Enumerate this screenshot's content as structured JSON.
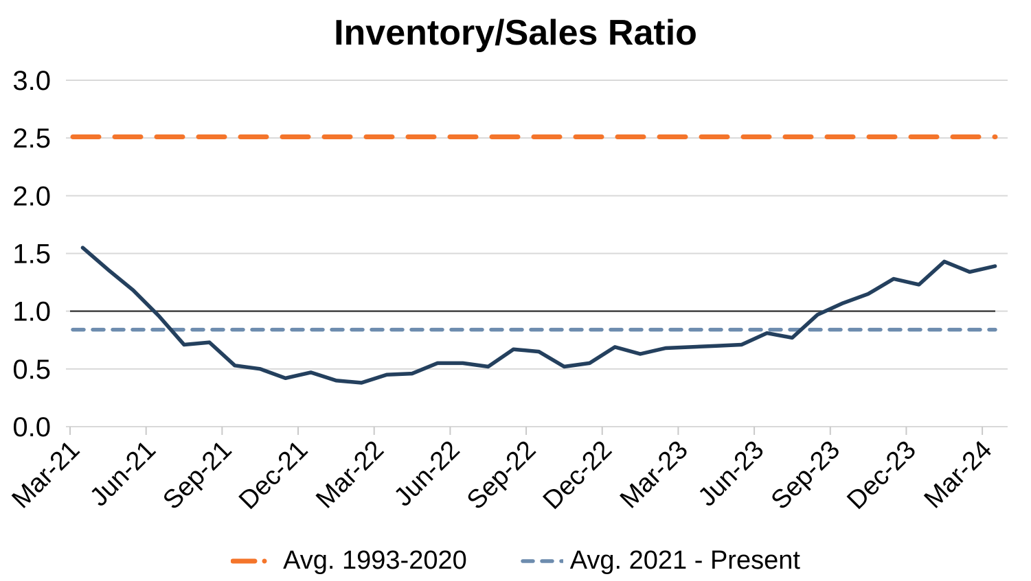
{
  "title": "Inventory/Sales Ratio",
  "colors": {
    "series": "#24405E",
    "avg_1993_2020": "#F4752B",
    "avg_2021_present": "#6D8CAE",
    "gridline": "#D9D9D9",
    "axis": "#C9C9C9",
    "unity_line": "#404040",
    "text": "#000000",
    "background": "#FFFFFF"
  },
  "legend": [
    {
      "label": "Avg. 1993-2020",
      "color": "#F4752B",
      "style": "long-dash"
    },
    {
      "label": "Avg. 2021 - Present",
      "color": "#6D8CAE",
      "style": "short-dash"
    }
  ],
  "chart_data": {
    "type": "line",
    "title": "Inventory/Sales Ratio",
    "categories": [
      "Mar-21",
      "Apr-21",
      "May-21",
      "Jun-21",
      "Jul-21",
      "Aug-21",
      "Sep-21",
      "Oct-21",
      "Nov-21",
      "Dec-21",
      "Jan-22",
      "Feb-22",
      "Mar-22",
      "Apr-22",
      "May-22",
      "Jun-22",
      "Jul-22",
      "Aug-22",
      "Sep-22",
      "Oct-22",
      "Nov-22",
      "Dec-22",
      "Jan-23",
      "Feb-23",
      "Mar-23",
      "Apr-23",
      "May-23",
      "Jun-23",
      "Jul-23",
      "Aug-23",
      "Sep-23",
      "Oct-23",
      "Nov-23",
      "Dec-23",
      "Jan-24",
      "Feb-24",
      "Mar-24"
    ],
    "series": [
      {
        "name": "Inventory/Sales Ratio",
        "type": "line",
        "values": [
          1.55,
          1.36,
          1.18,
          0.96,
          0.71,
          0.73,
          0.53,
          0.5,
          0.42,
          0.47,
          0.4,
          0.38,
          0.45,
          0.46,
          0.55,
          0.55,
          0.52,
          0.67,
          0.65,
          0.52,
          0.55,
          0.69,
          0.63,
          0.68,
          0.69,
          0.7,
          0.71,
          0.81,
          0.77,
          0.97,
          1.07,
          1.15,
          1.28,
          1.23,
          1.43,
          1.34,
          1.39
        ]
      },
      {
        "name": "Avg. 1993-2020",
        "type": "hline",
        "value": 2.51
      },
      {
        "name": "Avg. 2021 - Present",
        "type": "hline",
        "value": 0.84
      },
      {
        "name": "Unity reference",
        "type": "hline",
        "value": 1.0
      }
    ],
    "xtick_labels": [
      "Mar-21",
      "Jun-21",
      "Sep-21",
      "Dec-21",
      "Mar-22",
      "Jun-22",
      "Sep-22",
      "Dec-22",
      "Mar-23",
      "Jun-23",
      "Sep-23",
      "Dec-23",
      "Mar-24"
    ],
    "yticks": [
      "0.0",
      "0.5",
      "1.0",
      "1.5",
      "2.0",
      "2.5",
      "3.0"
    ],
    "ylim": [
      0,
      3
    ],
    "ytick_step": 0.5,
    "grid": true,
    "legend_position": "bottom",
    "x_label_rotation_deg": 45
  }
}
